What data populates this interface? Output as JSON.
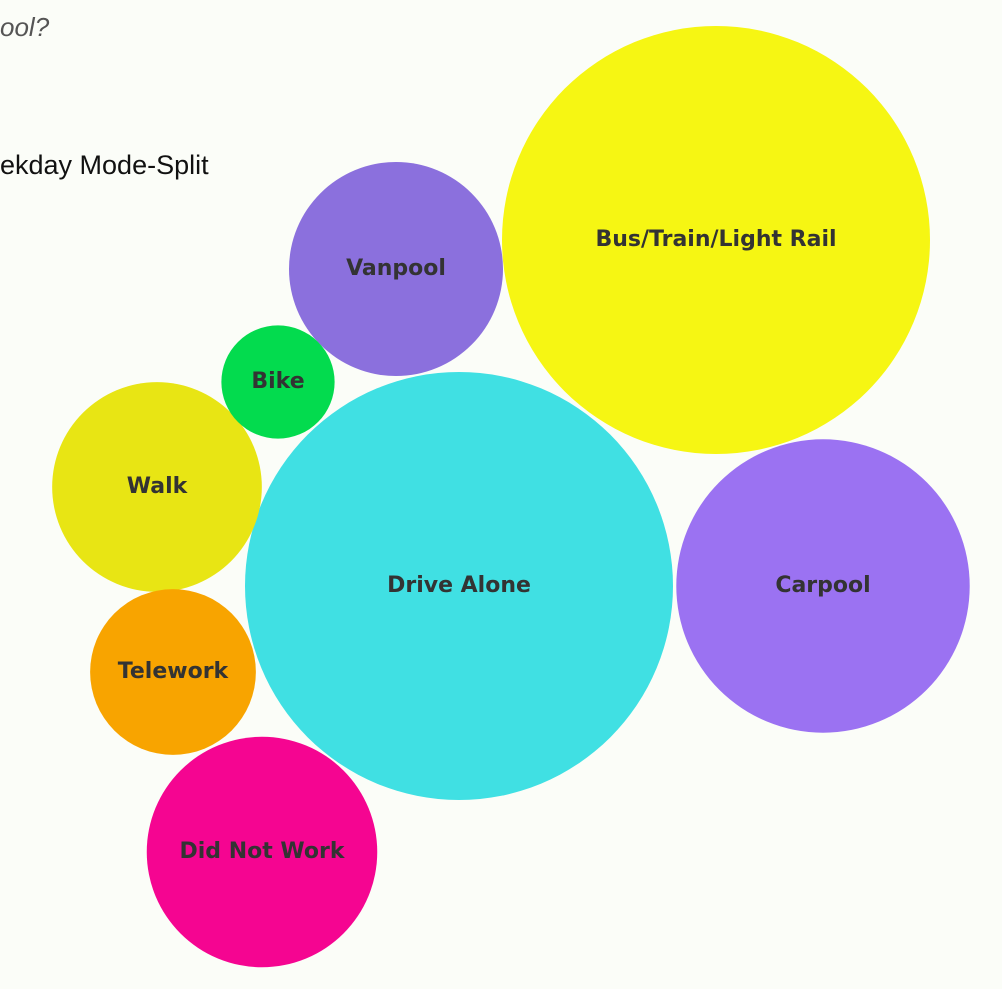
{
  "page": {
    "question": "ool?",
    "chart_heading": "ekday Mode-Split"
  },
  "chart_data": {
    "type": "bubble",
    "title": "ekday Mode-Split",
    "items": [
      {
        "label": "Bus/Train/Light Rail",
        "value": 100,
        "color": "#f6f613"
      },
      {
        "label": "Drive Alone",
        "value": 100,
        "color": "#40e0e3"
      },
      {
        "label": "Carpool",
        "value": 47,
        "color": "#9b72f2"
      },
      {
        "label": "Did Not Work",
        "value": 29,
        "color": "#f50591"
      },
      {
        "label": "Vanpool",
        "value": 25,
        "color": "#8b70dd"
      },
      {
        "label": "Walk",
        "value": 24,
        "color": "#e8e514"
      },
      {
        "label": "Telework",
        "value": 15,
        "color": "#f8a400"
      },
      {
        "label": "Bike",
        "value": 7,
        "color": "#03db4e"
      }
    ]
  }
}
